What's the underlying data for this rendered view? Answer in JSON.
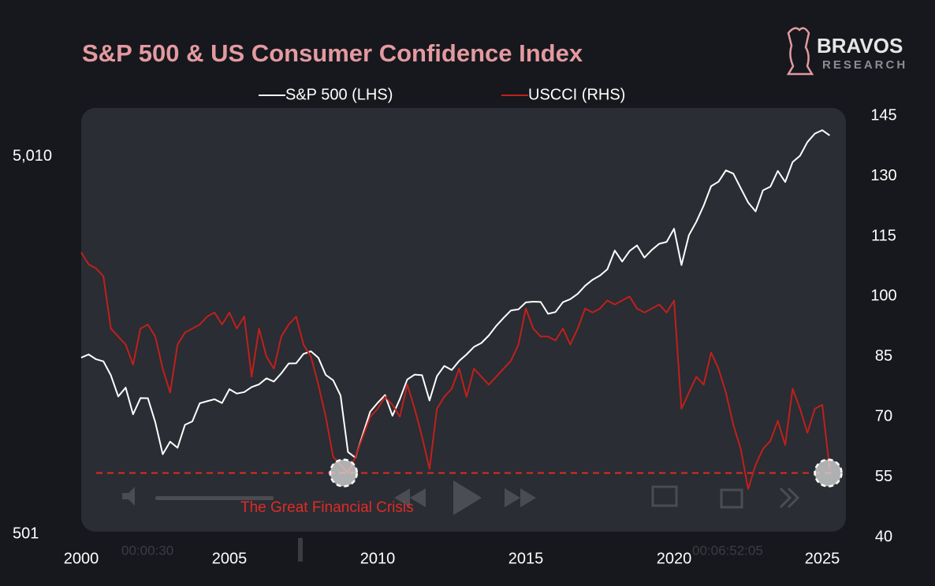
{
  "chart_data": {
    "type": "line",
    "title": "S&P 500 & US Consumer Confidence Index",
    "logo": {
      "name": "BRAVOS",
      "tagline": "RESEARCH"
    },
    "annotation": "The Great Financial Crisis",
    "overlay_texts": [
      "00:00:30",
      "00:06:52:05"
    ],
    "reference_line": 56,
    "highlights": [
      {
        "x": 2008.85,
        "y": 56
      },
      {
        "x": 2025.2,
        "y": 56
      }
    ],
    "x": [
      2000,
      2000.25,
      2000.5,
      2000.75,
      2001,
      2001.25,
      2001.5,
      2001.75,
      2002,
      2002.25,
      2002.5,
      2002.75,
      2003,
      2003.25,
      2003.5,
      2003.75,
      2004,
      2004.25,
      2004.5,
      2004.75,
      2005,
      2005.25,
      2005.5,
      2005.75,
      2006,
      2006.25,
      2006.5,
      2006.75,
      2007,
      2007.25,
      2007.5,
      2007.75,
      2008,
      2008.25,
      2008.5,
      2008.75,
      2009,
      2009.25,
      2009.5,
      2009.75,
      2010,
      2010.25,
      2010.5,
      2010.75,
      2011,
      2011.25,
      2011.5,
      2011.75,
      2012,
      2012.25,
      2012.5,
      2012.75,
      2013,
      2013.25,
      2013.5,
      2013.75,
      2014,
      2014.25,
      2014.5,
      2014.75,
      2015,
      2015.25,
      2015.5,
      2015.75,
      2016,
      2016.25,
      2016.5,
      2016.75,
      2017,
      2017.25,
      2017.5,
      2017.75,
      2018,
      2018.25,
      2018.5,
      2018.75,
      2019,
      2019.25,
      2019.5,
      2019.75,
      2020,
      2020.25,
      2020.5,
      2020.75,
      2021,
      2021.25,
      2021.5,
      2021.75,
      2022,
      2022.25,
      2022.5,
      2022.75,
      2023,
      2023.25,
      2023.5,
      2023.75,
      2024,
      2024.25,
      2024.5,
      2024.75,
      2025,
      2025.25
    ],
    "series": [
      {
        "name": "S&P 500 (LHS)",
        "color": "#ffffff",
        "axis": "y",
        "values": [
          1469,
          1498,
          1455,
          1436,
          1320,
          1160,
          1224,
          1040,
          1148,
          1147,
          990,
          815,
          880,
          848,
          975,
          996,
          1112,
          1126,
          1140,
          1114,
          1212,
          1180,
          1191,
          1228,
          1248,
          1295,
          1270,
          1335,
          1418,
          1420,
          1503,
          1527,
          1468,
          1322,
          1280,
          1166,
          826,
          798,
          919,
          1057,
          1115,
          1169,
          1031,
          1141,
          1286,
          1325,
          1320,
          1131,
          1312,
          1397,
          1362,
          1440,
          1498,
          1569,
          1606,
          1681,
          1783,
          1872,
          1960,
          1972,
          2058,
          2067,
          2063,
          1920,
          1940,
          2060,
          2099,
          2168,
          2278,
          2363,
          2423,
          2519,
          2823,
          2640,
          2816,
          2913,
          2704,
          2834,
          2942,
          2977,
          3225,
          2584,
          3100,
          3363,
          3714,
          4181,
          4297,
          4605,
          4515,
          4131,
          3785,
          3585,
          4077,
          4169,
          4589,
          4288,
          4845,
          5035,
          5475,
          5762,
          5882,
          5700
        ]
      },
      {
        "name": "USCCI (RHS)",
        "color": "#c0201c",
        "axis": "y2",
        "values": [
          111,
          108,
          107,
          105,
          92,
          90,
          88,
          83,
          92,
          93,
          90,
          82,
          76,
          88,
          91,
          92,
          93,
          95,
          96,
          93,
          96,
          92,
          95,
          80,
          92,
          85,
          82,
          90,
          93,
          95,
          88,
          85,
          78,
          70,
          60,
          58,
          56,
          60,
          65,
          70,
          72,
          75,
          73,
          70,
          78,
          72,
          65,
          57,
          72,
          75,
          77,
          82,
          75,
          82,
          80,
          78,
          80,
          82,
          84,
          88,
          97,
          92,
          90,
          90,
          89,
          92,
          88,
          92,
          97,
          96,
          97,
          99,
          98,
          99,
          100,
          97,
          96,
          97,
          98,
          96,
          99,
          72,
          76,
          80,
          78,
          86,
          82,
          76,
          68,
          62,
          52,
          58,
          62,
          64,
          69,
          63,
          77,
          72,
          66,
          72,
          73,
          57
        ]
      }
    ],
    "xlim": [
      2000,
      2025
    ],
    "xticks": [
      2000,
      2005,
      2010,
      2015,
      2020,
      2025
    ],
    "ylim": [
      501,
      6740
    ],
    "log_y": true,
    "yticks": [
      {
        "value": 5010,
        "label": "5,010"
      },
      501
    ],
    "y2lim": [
      40,
      147
    ],
    "y2ticks": [
      145,
      130,
      115,
      100,
      85,
      70,
      55,
      40
    ]
  }
}
